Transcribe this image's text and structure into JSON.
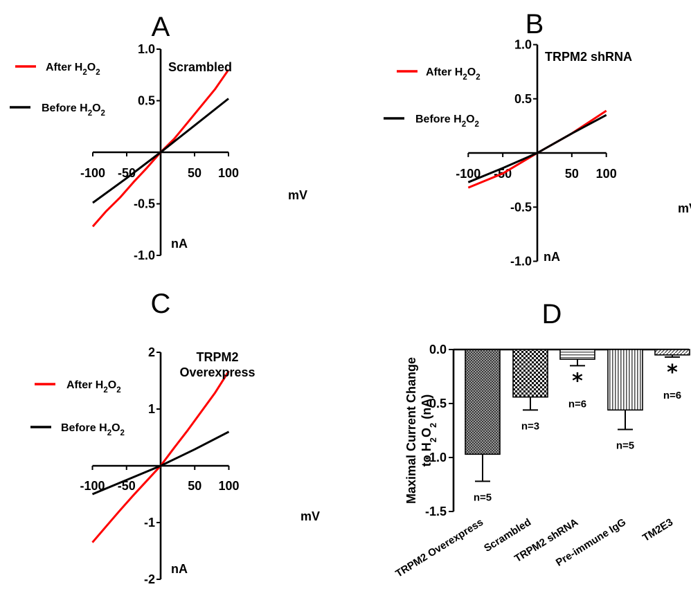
{
  "chart_data": [
    {
      "panel": "A",
      "type": "line",
      "annotation": "Scrambled",
      "xlabel": "mV",
      "ylabel": "nA",
      "xlim": [
        -100,
        100
      ],
      "ylim": [
        -1.0,
        1.0
      ],
      "xticks": [
        -100,
        -50,
        50,
        100
      ],
      "xtick_labels": [
        "-100",
        "-50",
        "50",
        "100"
      ],
      "yticks": [
        1.0,
        0.5,
        -0.5,
        -1.0
      ],
      "ytick_labels": [
        "1.0",
        "0.5",
        "-0.5",
        "-1.0"
      ],
      "series": [
        {
          "name": "After H2O2",
          "color": "#ff0000",
          "x": [
            -100,
            -80,
            -60,
            -40,
            -20,
            0,
            20,
            40,
            60,
            80,
            100
          ],
          "y": [
            -0.72,
            -0.57,
            -0.44,
            -0.29,
            -0.15,
            0.0,
            0.13,
            0.29,
            0.45,
            0.61,
            0.8
          ]
        },
        {
          "name": "Before H2O2",
          "color": "#000000",
          "x": [
            -100,
            -50,
            0,
            50,
            100
          ],
          "y": [
            -0.49,
            -0.25,
            0.0,
            0.26,
            0.52
          ]
        }
      ]
    },
    {
      "panel": "B",
      "type": "line",
      "annotation": "TRPM2 shRNA",
      "xlabel": "mV",
      "ylabel": "nA",
      "xlim": [
        -100,
        100
      ],
      "ylim": [
        -1.0,
        1.0
      ],
      "xticks": [
        -100,
        -50,
        50,
        100
      ],
      "xtick_labels": [
        "-100",
        "-50",
        "50",
        "100"
      ],
      "yticks": [
        1.0,
        0.5,
        -0.5,
        -1.0
      ],
      "ytick_labels": [
        "1.0",
        "0.5",
        "-0.5",
        "-1.0"
      ],
      "series": [
        {
          "name": "After H2O2",
          "color": "#ff0000",
          "x": [
            -100,
            -50,
            0,
            50,
            100
          ],
          "y": [
            -0.32,
            -0.19,
            0.0,
            0.18,
            0.39
          ]
        },
        {
          "name": "Before H2O2",
          "color": "#000000",
          "x": [
            -100,
            -50,
            0,
            50,
            100
          ],
          "y": [
            -0.27,
            -0.14,
            0.0,
            0.18,
            0.35
          ]
        }
      ]
    },
    {
      "panel": "C",
      "type": "line",
      "annotation": "TRPM2 Overexpress",
      "annotation_lines": [
        "TRPM2",
        "Overexpress"
      ],
      "xlabel": "mV",
      "ylabel": "nA",
      "xlim": [
        -100,
        100
      ],
      "ylim": [
        -2,
        2
      ],
      "xticks": [
        -100,
        -50,
        50,
        100
      ],
      "xtick_labels": [
        "-100",
        "-50",
        "50",
        "100"
      ],
      "yticks": [
        2,
        1,
        -1,
        -2
      ],
      "ytick_labels": [
        "2",
        "1",
        "-1",
        "-2"
      ],
      "series": [
        {
          "name": "After H2O2",
          "color": "#ff0000",
          "x": [
            -100,
            -80,
            -60,
            -40,
            -20,
            0,
            20,
            40,
            60,
            80,
            100
          ],
          "y": [
            -1.35,
            -1.07,
            -0.79,
            -0.52,
            -0.26,
            0.0,
            0.32,
            0.63,
            0.96,
            1.29,
            1.67
          ]
        },
        {
          "name": "Before H2O2",
          "color": "#000000",
          "x": [
            -100,
            -50,
            0,
            50,
            100
          ],
          "y": [
            -0.5,
            -0.25,
            0.0,
            0.29,
            0.6
          ]
        }
      ]
    },
    {
      "panel": "D",
      "type": "bar",
      "ylabel_line1": "Maximal Current Change",
      "ylabel_line2": "to H2O2 (nA)",
      "ylim": [
        -1.5,
        0.0
      ],
      "yticks": [
        0.0,
        -0.5,
        -1.0,
        -1.5
      ],
      "ytick_labels": [
        "0.0",
        "-0.5",
        "-1.0",
        "-1.5"
      ],
      "categories": [
        "TRPM2 Overexpress",
        "Scrambled",
        "TRPM2 shRNA",
        "Pre-immune IgG",
        "TM2E3"
      ],
      "values": [
        -0.97,
        -0.44,
        -0.09,
        -0.56,
        -0.05
      ],
      "errors": [
        0.25,
        0.12,
        0.06,
        0.18,
        0.02
      ],
      "n_labels": [
        "n=5",
        "n=3",
        "n=6",
        "n=5",
        "n=6"
      ],
      "significance": [
        "",
        "",
        "*",
        "",
        "*"
      ]
    }
  ]
}
